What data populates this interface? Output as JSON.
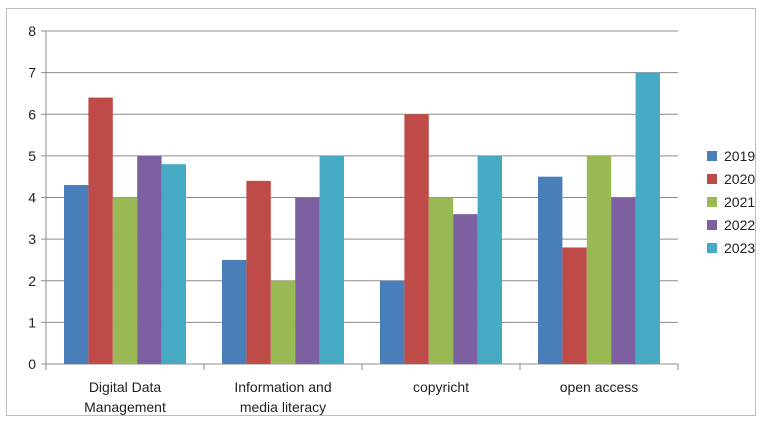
{
  "chart_data": {
    "type": "bar",
    "categories": [
      [
        "Digital Data",
        "Management"
      ],
      [
        "Information and",
        "media literacy"
      ],
      [
        "copyricht"
      ],
      [
        "open access"
      ]
    ],
    "series": [
      {
        "name": "2019",
        "color": "#4a7ebb",
        "values": [
          4.3,
          2.5,
          2.0,
          4.5
        ]
      },
      {
        "name": "2020",
        "color": "#be4b48",
        "values": [
          6.4,
          4.4,
          6.0,
          2.8
        ]
      },
      {
        "name": "2021",
        "color": "#98b954",
        "values": [
          4.0,
          2.0,
          4.0,
          5.0
        ]
      },
      {
        "name": "2022",
        "color": "#7d60a0",
        "values": [
          5.0,
          4.0,
          3.6,
          4.0
        ]
      },
      {
        "name": "2023",
        "color": "#46aac4",
        "values": [
          4.8,
          5.0,
          5.0,
          7.0
        ]
      }
    ],
    "ylim": [
      0,
      8
    ],
    "yticks": [
      "0",
      "1",
      "2",
      "3",
      "4",
      "5",
      "6",
      "7",
      "8"
    ],
    "grid": true,
    "legend": "right"
  }
}
